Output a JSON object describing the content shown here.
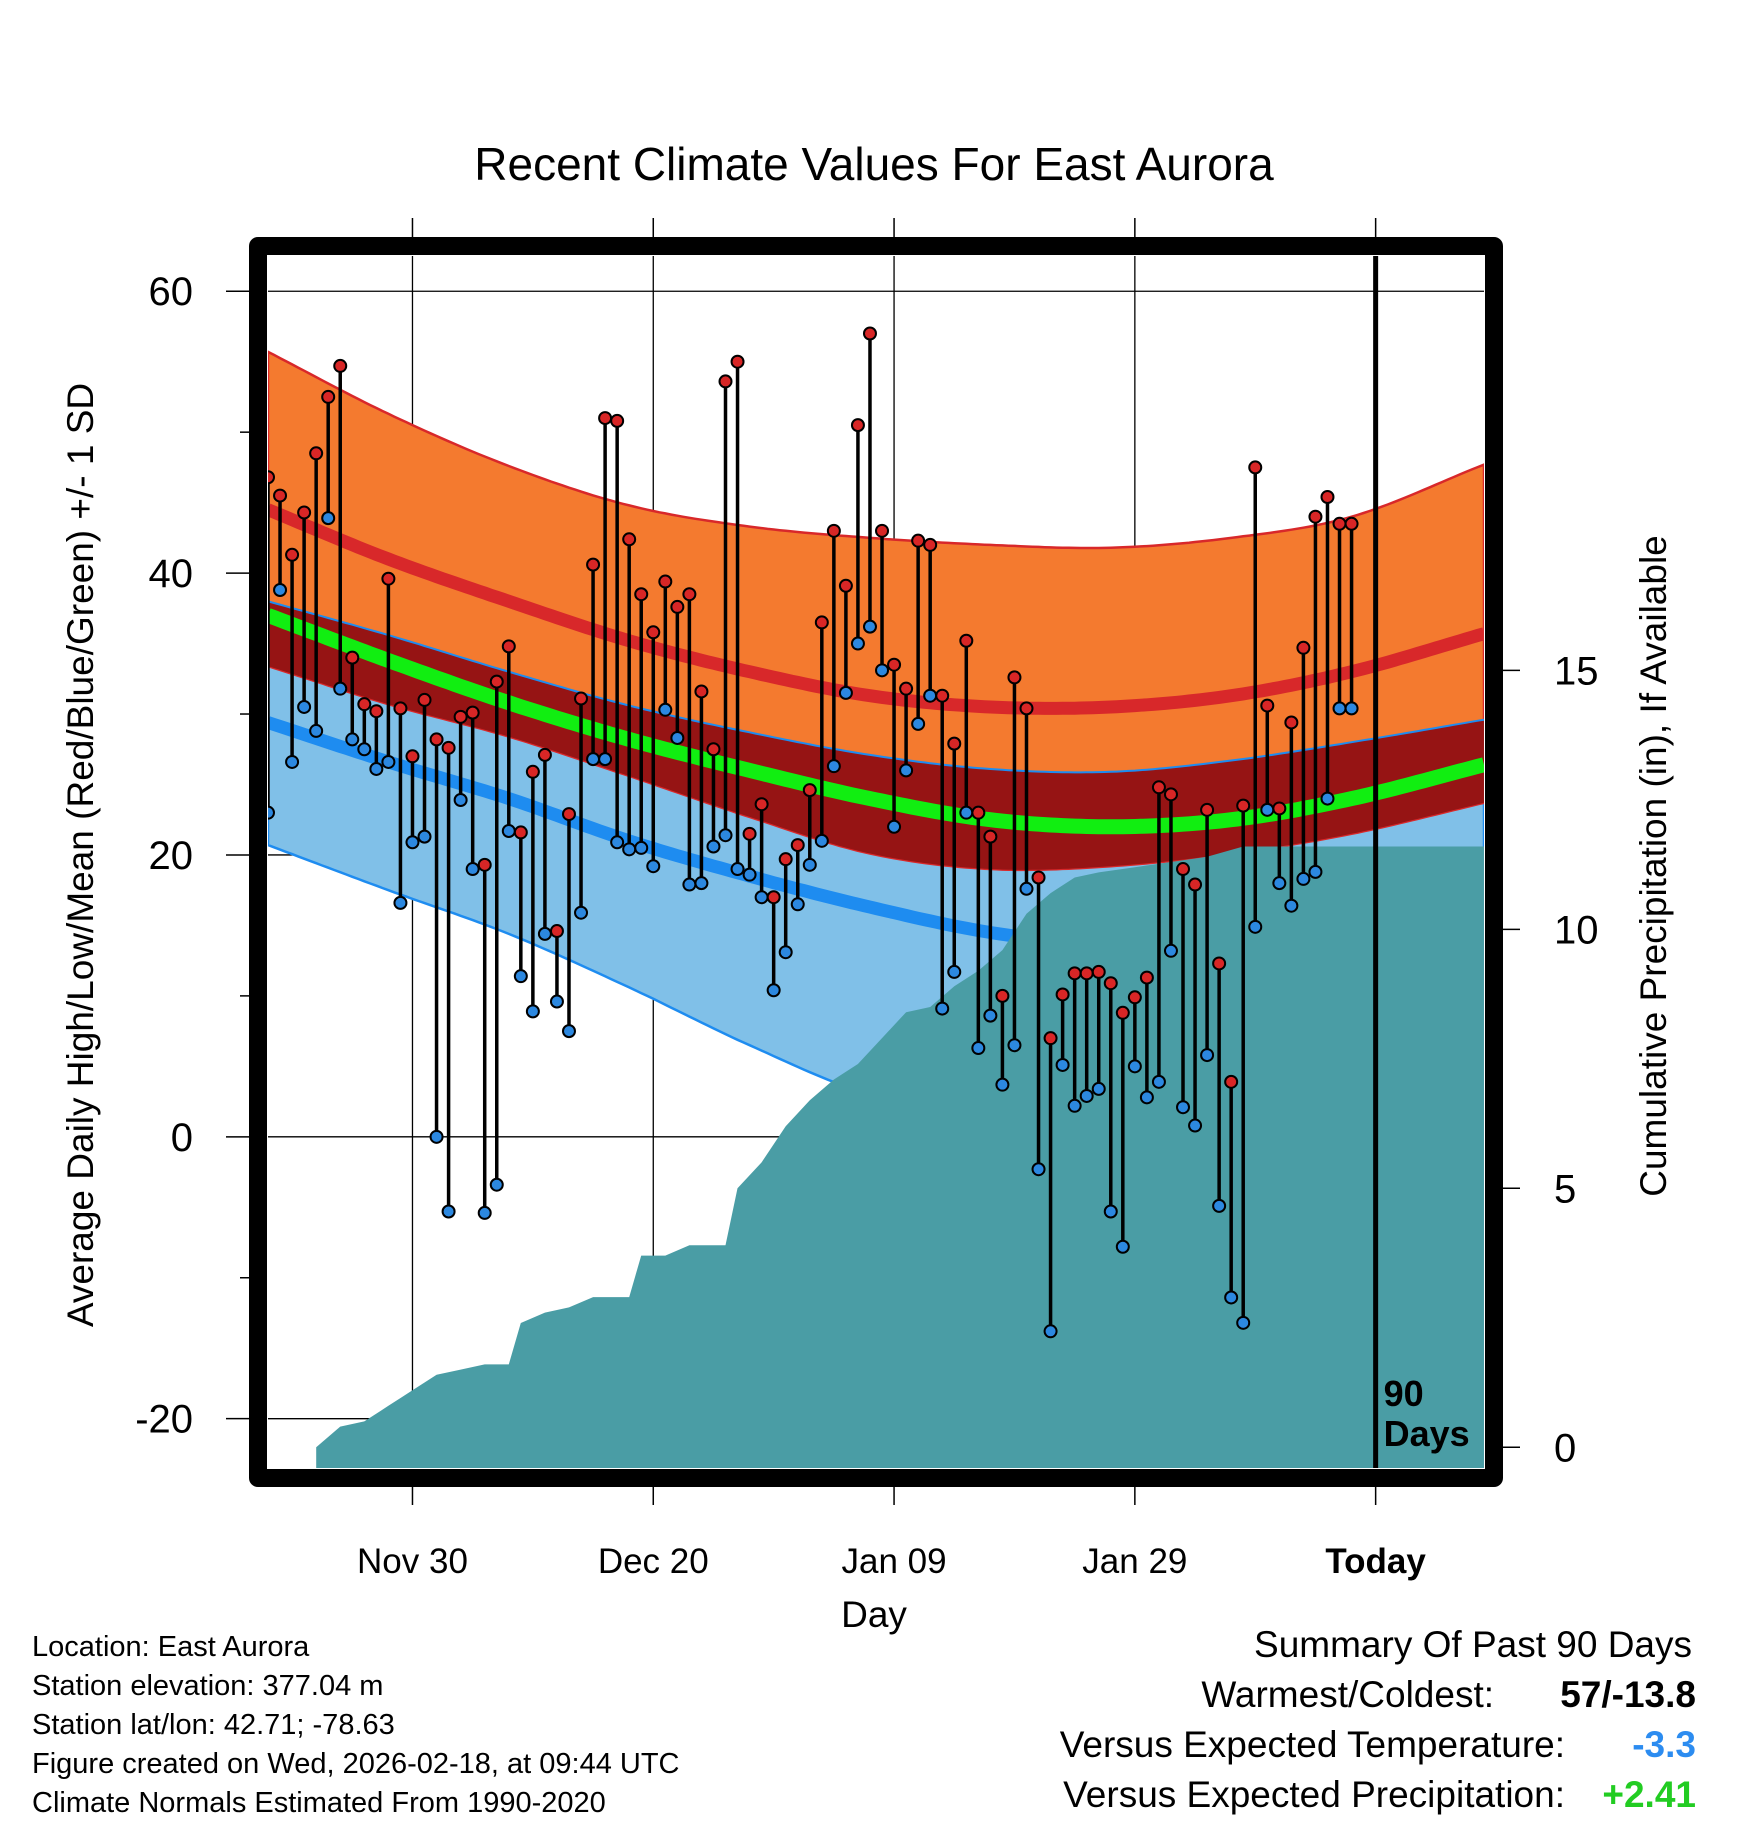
{
  "chart_data": {
    "type": "line",
    "title": "Recent Climate Values For East Aurora",
    "xlabel": "Day",
    "ylabel_left": "Average Daily High/Low/Mean (Red/Blue/Green) +/- 1 SD",
    "ylabel_right": "Cumulative Precipitation (in), If Available",
    "x_ticks": [
      {
        "label": "Nov 30",
        "day": 12
      },
      {
        "label": "Dec 20",
        "day": 32
      },
      {
        "label": "Jan 09",
        "day": 52
      },
      {
        "label": "Jan 29",
        "day": 72
      },
      {
        "label": "Today",
        "day": 92
      }
    ],
    "xlim": [
      0,
      101
    ],
    "ylim_left": [
      -23.5,
      62.5
    ],
    "left_ticks": [
      -20,
      0,
      20,
      40,
      60
    ],
    "ylim_right": [
      -0.4,
      23
    ],
    "right_ticks": [
      0,
      5,
      10,
      15
    ],
    "today_label": "90 Days",
    "normals_days": [
      0,
      10,
      20,
      30,
      40,
      50,
      60,
      70,
      80,
      90,
      101
    ],
    "normal_high": [
      44.5,
      41.0,
      38.0,
      35.2,
      33.0,
      31.3,
      30.5,
      30.5,
      31.3,
      33.0,
      35.7
    ],
    "normal_high_upper": [
      55.7,
      51.3,
      47.6,
      44.8,
      43.3,
      42.5,
      42.0,
      41.8,
      42.5,
      44.0,
      47.7
    ],
    "normal_high_lower": [
      33.4,
      30.7,
      28.4,
      25.6,
      22.7,
      20.1,
      19.0,
      19.2,
      20.1,
      21.5,
      23.7
    ],
    "normal_mean": [
      37.0,
      33.8,
      30.8,
      28.2,
      26.0,
      24.0,
      22.5,
      22.0,
      22.5,
      24.0,
      26.4
    ],
    "normal_low": [
      29.4,
      26.6,
      24.0,
      21.0,
      18.5,
      16.3,
      14.5,
      13.6,
      14.1,
      15.4,
      17.6
    ],
    "normal_low_upper": [
      38.0,
      35.6,
      33.0,
      30.6,
      28.7,
      27.1,
      26.1,
      25.9,
      26.7,
      28.0,
      29.6
    ],
    "normal_low_lower": [
      20.7,
      17.5,
      14.4,
      10.6,
      6.5,
      3.0,
      1.5,
      1.5,
      2.5,
      3.9,
      5.7
    ],
    "days": [
      0,
      1,
      2,
      3,
      4,
      5,
      6,
      7,
      8,
      9,
      10,
      11,
      12,
      13,
      14,
      15,
      16,
      17,
      18,
      19,
      20,
      21,
      22,
      23,
      24,
      25,
      26,
      27,
      28,
      29,
      30,
      31,
      32,
      33,
      34,
      35,
      36,
      37,
      38,
      39,
      40,
      41,
      42,
      43,
      44,
      45,
      46,
      47,
      48,
      49,
      50,
      51,
      52,
      53,
      54,
      55,
      56,
      57,
      58,
      59,
      60,
      61,
      62,
      63,
      64,
      65,
      66,
      67,
      68,
      69,
      70,
      71,
      72,
      73,
      74,
      75,
      76,
      77,
      78,
      79,
      80,
      81,
      82,
      83,
      84,
      85,
      86,
      87,
      88,
      89,
      90
    ],
    "high": [
      46.8,
      45.5,
      41.3,
      44.3,
      48.5,
      52.5,
      54.7,
      34.0,
      30.7,
      30.2,
      39.6,
      30.4,
      27.0,
      31.0,
      28.2,
      27.6,
      29.8,
      30.1,
      19.3,
      32.3,
      34.8,
      21.6,
      25.9,
      27.1,
      14.6,
      22.9,
      31.1,
      40.6,
      51.0,
      50.8,
      42.4,
      38.5,
      35.8,
      39.4,
      37.6,
      38.5,
      31.6,
      27.5,
      53.6,
      55.0,
      21.5,
      23.6,
      17.0,
      19.7,
      20.7,
      24.6,
      36.5,
      43.0,
      39.1,
      50.5,
      57.0,
      43.0,
      33.5,
      31.8,
      42.3,
      42.0,
      31.3,
      27.9,
      35.2,
      23.0,
      21.3,
      10.0,
      32.6,
      30.4,
      18.4,
      7.0,
      10.1,
      11.6,
      11.6,
      11.7,
      10.9,
      8.8,
      9.9,
      11.3,
      24.8,
      24.3,
      19.0,
      17.9,
      23.2,
      12.3,
      3.9,
      23.5,
      47.5,
      30.6,
      23.3,
      29.4,
      34.7,
      44.0,
      45.4,
      43.5,
      43.5
    ],
    "low": [
      23.0,
      38.8,
      26.6,
      30.5,
      28.8,
      43.9,
      31.8,
      28.2,
      27.5,
      26.1,
      26.6,
      16.6,
      20.9,
      21.3,
      0.0,
      -5.3,
      23.9,
      19.0,
      -5.4,
      -3.4,
      21.7,
      11.4,
      8.9,
      14.4,
      9.6,
      7.5,
      15.9,
      26.8,
      26.8,
      20.9,
      20.4,
      20.5,
      19.2,
      30.3,
      28.3,
      17.9,
      18.0,
      20.6,
      21.4,
      19.0,
      18.6,
      17.0,
      10.4,
      13.1,
      16.5,
      19.3,
      21.0,
      26.3,
      31.5,
      35.0,
      36.2,
      33.1,
      22.0,
      26.0,
      29.3,
      31.3,
      9.1,
      11.7,
      23.0,
      6.3,
      8.6,
      3.7,
      6.5,
      17.6,
      -2.3,
      -13.8,
      5.1,
      2.2,
      2.9,
      3.4,
      -5.3,
      -7.8,
      5.0,
      2.8,
      3.9,
      13.2,
      2.1,
      0.8,
      5.8,
      -4.9,
      -11.4,
      -13.2,
      14.9,
      23.2,
      18.0,
      16.4,
      18.3,
      18.8,
      24.0,
      30.4,
      30.4
    ],
    "precip_cumulative": {
      "days": [
        4,
        6,
        8,
        10,
        12,
        14,
        16,
        18,
        20,
        21,
        23,
        25,
        27,
        30,
        31,
        33,
        35,
        38,
        39,
        41,
        43,
        45,
        47,
        49,
        51,
        53,
        55,
        57,
        59,
        61,
        63,
        65,
        67,
        69,
        72,
        75,
        78,
        81,
        84,
        87,
        90,
        101
      ],
      "values": [
        0,
        0.4,
        0.5,
        0.8,
        1.1,
        1.4,
        1.5,
        1.6,
        1.6,
        2.4,
        2.6,
        2.7,
        2.9,
        2.9,
        3.7,
        3.7,
        3.9,
        3.9,
        5.0,
        5.5,
        6.2,
        6.7,
        7.1,
        7.4,
        7.9,
        8.4,
        8.5,
        8.9,
        9.2,
        9.6,
        10.3,
        10.7,
        11.0,
        11.1,
        11.2,
        11.3,
        11.4,
        11.6,
        11.6,
        11.6,
        11.6,
        11.6
      ]
    }
  },
  "info": {
    "location": "Location: East Aurora",
    "elevation": "Station elevation: 377.04 m",
    "latlon": "Station lat/lon: 42.71; -78.63",
    "created": "Figure created on Wed, 2026-02-18, at 09:44 UTC",
    "normals": "Climate Normals Estimated From 1990-2020"
  },
  "summary": {
    "title": "Summary Of Past 90 Days",
    "warm_label": "Warmest/Coldest:",
    "warm_value": "57/-13.8",
    "temp_label": "Versus Expected Temperature:",
    "temp_value": "-3.3",
    "precip_label": "Versus Expected Precipitation:",
    "precip_value": "+2.41"
  },
  "colors": {
    "high_band": "#F47A2F",
    "high_line": "#D8282A",
    "mean_band": "#961414",
    "mean_line": "#11EE11",
    "low_band": "#80C0E8",
    "low_line": "#1E8CF0",
    "precip": "#4A9DA5",
    "high_dot": "#D82626",
    "low_dot": "#2C88E0",
    "temp_value": "#2C8CF0",
    "precip_value": "#22CC22"
  }
}
